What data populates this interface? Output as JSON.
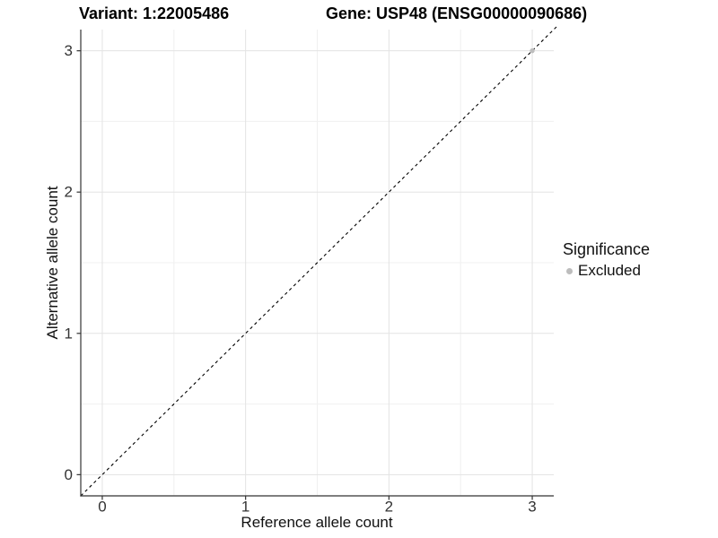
{
  "titles": {
    "variant": "Variant: 1:22005486",
    "gene": "Gene: USP48 (ENSG00000090686)"
  },
  "legend": {
    "title": "Significance",
    "items": [
      {
        "label": "Excluded",
        "color": "#bdbdbd"
      }
    ]
  },
  "colors": {
    "axis": "#333333",
    "grid_major": "#e3e3e3",
    "grid_minor": "#f0f0f0",
    "reference_line": "#000000",
    "excluded_point": "#bdbdbd"
  },
  "chart_data": {
    "type": "scatter",
    "title": "Variant: 1:22005486  |  Gene: USP48 (ENSG00000090686)",
    "xlabel": "Reference allele count",
    "ylabel": "Alternative allele count",
    "xlim": [
      -0.15,
      3.15
    ],
    "ylim": [
      -0.15,
      3.15
    ],
    "x_ticks": [
      0,
      1,
      2,
      3
    ],
    "y_ticks": [
      0,
      1,
      2,
      3
    ],
    "x_minor": [
      0.5,
      1.5,
      2.5
    ],
    "y_minor": [
      0.5,
      1.5,
      2.5
    ],
    "grid": "on",
    "legend_position": "right",
    "reference_line": {
      "type": "abline",
      "slope": 1,
      "intercept": 0,
      "style": "dashed",
      "color": "#000000"
    },
    "series": [
      {
        "name": "Excluded",
        "color": "#bdbdbd",
        "points": [
          [
            3,
            3
          ]
        ]
      }
    ]
  }
}
